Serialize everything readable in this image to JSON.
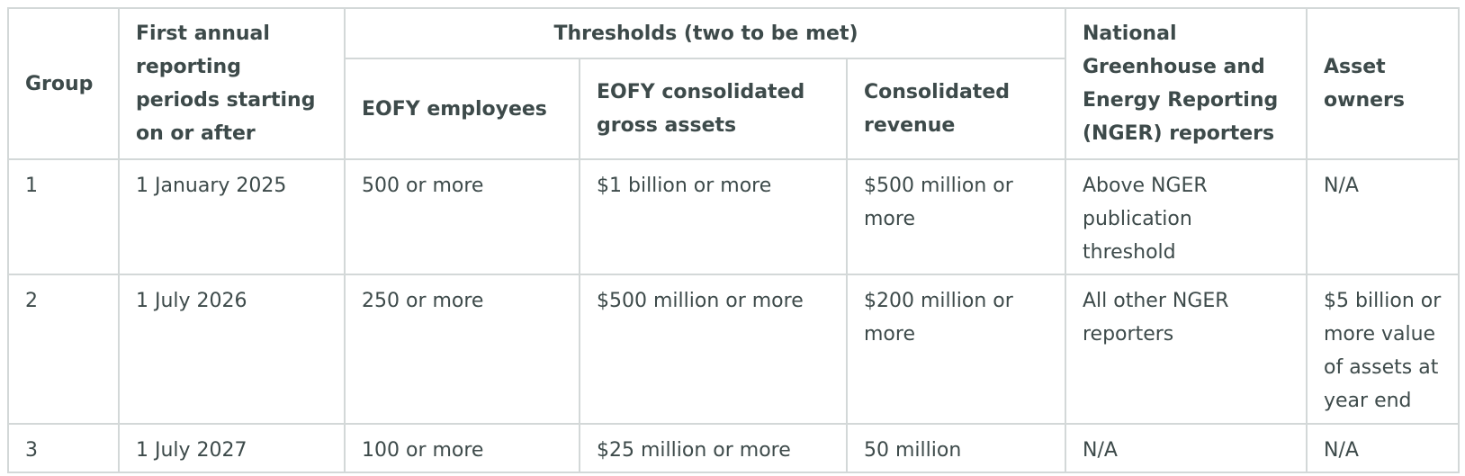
{
  "table": {
    "header": {
      "group": "Group",
      "first_period": "First annual reporting periods starting on or after",
      "thresholds": "Thresholds (two to be met)",
      "threshold_columns": [
        "EOFY employees",
        "EOFY consolidated gross assets",
        "Consolidated revenue"
      ],
      "nger": "National Greenhouse and Energy Reporting (NGER) reporters",
      "asset_owners": "Asset owners"
    },
    "rows": [
      [
        "1",
        "1 January 2025",
        "500 or more",
        "$1 billion or more",
        "$500 million or more",
        "Above NGER publication threshold",
        "N/A"
      ],
      [
        "2",
        "1 July 2026",
        "250 or more",
        "$500 million or more",
        "$200 million or more",
        "All other NGER reporters",
        "$5 billion or more value of assets at year end"
      ],
      [
        "3",
        "1 July 2027",
        "100 or more",
        "$25 million or more",
        "50 million",
        "N/A",
        "N/A"
      ]
    ]
  }
}
